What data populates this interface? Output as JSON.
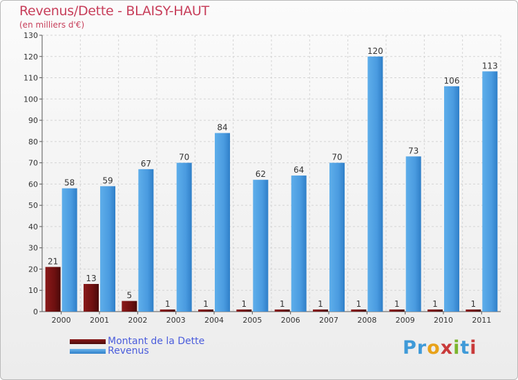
{
  "header": {
    "title": "Revenus/Dette - BLAISY-HAUT",
    "subtitle": "(en milliers d'€)"
  },
  "legend": {
    "items": [
      {
        "label": "Montant de la Dette",
        "color": "#7a1212"
      },
      {
        "label": "Revenus",
        "color": "#4ea0e4"
      }
    ]
  },
  "logo": {
    "letters": [
      {
        "char": "P",
        "color": "#3f9ad8"
      },
      {
        "char": "r",
        "color": "#3f9ad8"
      },
      {
        "char": "o",
        "color": "#e8a21a"
      },
      {
        "char": "x",
        "color": "#c93a3a"
      },
      {
        "char": "i",
        "color": "#7cb52e"
      },
      {
        "char": "t",
        "color": "#3f9ad8"
      },
      {
        "char": "i",
        "color": "#c93a3a"
      }
    ]
  },
  "chart_data": {
    "type": "bar",
    "title": "Revenus/Dette - BLAISY-HAUT",
    "ylabel": "(en milliers d'€)",
    "categories": [
      "2000",
      "2001",
      "2002",
      "2003",
      "2004",
      "2005",
      "2006",
      "2007",
      "2008",
      "2009",
      "2010",
      "2011"
    ],
    "series": [
      {
        "name": "Montant de la Dette",
        "color": "#7a1212",
        "values": [
          21,
          13,
          5,
          1,
          1,
          1,
          1,
          1,
          1,
          1,
          1,
          1
        ]
      },
      {
        "name": "Revenus",
        "color": "#4ea0e4",
        "values": [
          58,
          59,
          67,
          70,
          84,
          62,
          64,
          70,
          120,
          73,
          106,
          113
        ]
      }
    ],
    "ylim": [
      0,
      130
    ],
    "yticks": [
      0,
      10,
      20,
      30,
      40,
      50,
      60,
      70,
      80,
      90,
      100,
      110,
      120,
      130
    ],
    "grid": true,
    "legend_position": "bottom-left"
  }
}
